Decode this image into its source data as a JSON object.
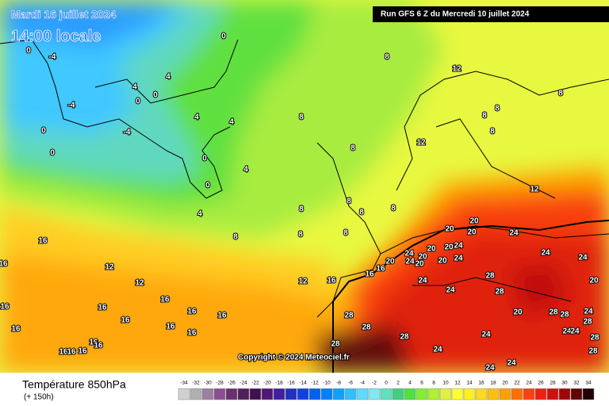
{
  "header": {
    "date": "Mardi 16 juillet 2024",
    "time": "14:00 locale",
    "run": "Run GFS 6 Z du Mercredi 10 juillet 2024",
    "copyright": "Copyright © 2024 Meteociel.fr"
  },
  "footer": {
    "title": "Température 850hPa",
    "subtitle": "(+ 150h)"
  },
  "legend": {
    "values": [
      -34,
      -32,
      -30,
      -28,
      -26,
      -24,
      -22,
      -20,
      -18,
      -16,
      -14,
      -12,
      -10,
      -8,
      -6,
      -4,
      -2,
      0,
      2,
      4,
      6,
      8,
      10,
      12,
      14,
      16,
      18,
      20,
      22,
      24,
      26,
      28,
      30,
      32,
      34
    ],
    "colors": [
      "#d0d0d0",
      "#b0b0b0",
      "#9a7fa0",
      "#8a5090",
      "#6a3070",
      "#50205a",
      "#401050",
      "#501878",
      "#4020a0",
      "#2030c0",
      "#1040e0",
      "#0060f0",
      "#0080ff",
      "#10a0ff",
      "#30c0ff",
      "#60d8ff",
      "#80e8f0",
      "#60e0c0",
      "#40d080",
      "#50e040",
      "#80f030",
      "#b0f030",
      "#e0f040",
      "#ffff30",
      "#fff020",
      "#ffd820",
      "#ffc010",
      "#ffa000",
      "#ff7000",
      "#ff4010",
      "#f02010",
      "#d01010",
      "#a00808",
      "#600404",
      "#200000"
    ]
  },
  "map_labels": [
    0,
    0,
    -4,
    8,
    12,
    4,
    4,
    0,
    0,
    -4,
    8,
    8,
    4,
    4,
    8,
    8,
    0,
    -4,
    8,
    12,
    8,
    0,
    0,
    4,
    0,
    8,
    12,
    4,
    8,
    8,
    8,
    20,
    20,
    20,
    24,
    8,
    8,
    8,
    16,
    20,
    24,
    20,
    24,
    20,
    24,
    24,
    12,
    20,
    24,
    20,
    20,
    24,
    16,
    16,
    16,
    12,
    12,
    16,
    24,
    28,
    20,
    24,
    28,
    16,
    16,
    16,
    16,
    16,
    28,
    20,
    28,
    28,
    24,
    16,
    28,
    16,
    16,
    16,
    28,
    28,
    24,
    24,
    24,
    28,
    16,
    16,
    28,
    24,
    28,
    16,
    16,
    16,
    24,
    24
  ]
}
